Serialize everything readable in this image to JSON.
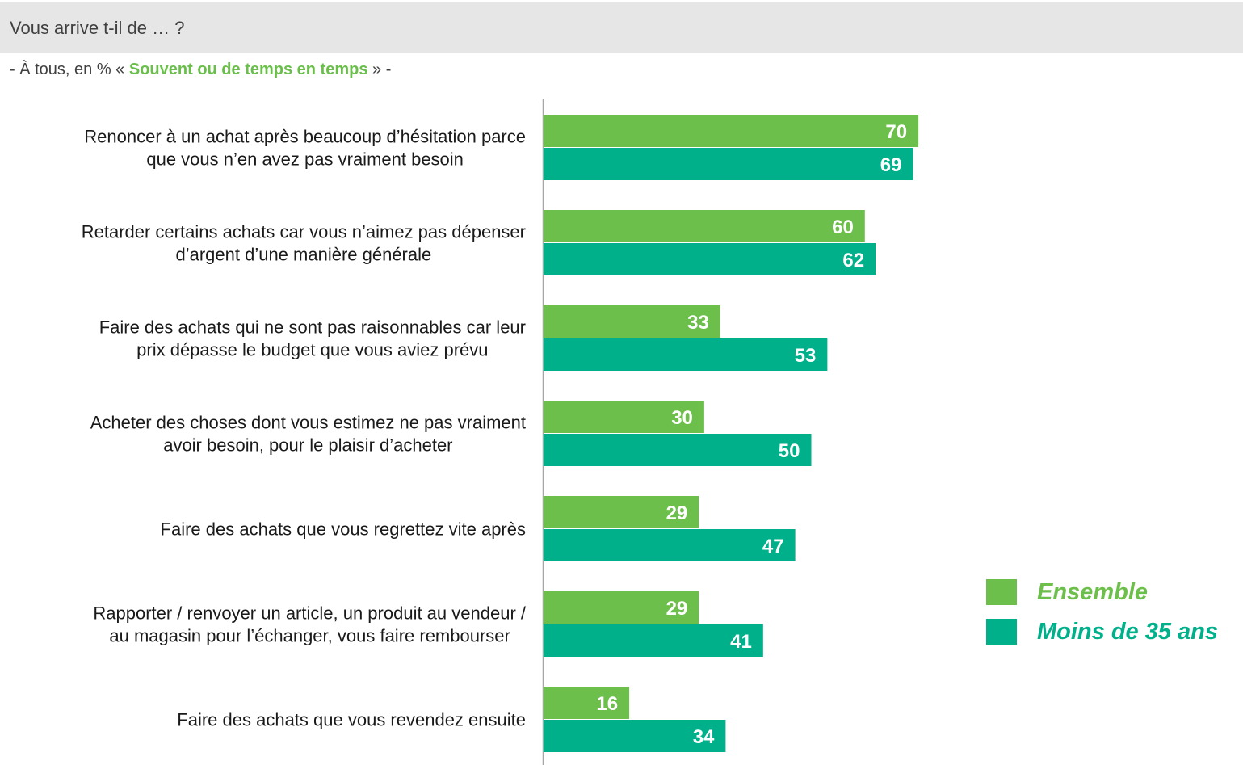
{
  "header": {
    "title": "Vous arrive t-il de … ?",
    "subtitle_prefix": "- À tous, en % « ",
    "subtitle_highlight": "Souvent ou de temps en temps",
    "subtitle_suffix": " » -"
  },
  "colors": {
    "ensemble": "#6dbf4b",
    "moins35": "#00b08a",
    "axis": "#a6a6a6",
    "label_text": "#1a1a1a"
  },
  "legend": {
    "ensemble": "Ensemble",
    "moins35": "Moins de 35 ans"
  },
  "chart_data": {
    "type": "bar",
    "orientation": "horizontal",
    "categories": [
      [
        "Renoncer à un achat après beaucoup d’hésitation parce",
        "que vous n’en avez pas vraiment besoin"
      ],
      [
        "Retarder certains achats car vous n’aimez pas dépenser",
        "d’argent d’une manière générale"
      ],
      [
        "Faire des achats qui ne sont pas raisonnables car leur",
        "prix dépasse le budget que vous aviez prévu"
      ],
      [
        "Acheter des choses dont vous estimez ne pas vraiment",
        "avoir besoin, pour le plaisir d’acheter"
      ],
      [
        "Faire des achats que vous regrettez vite après"
      ],
      [
        "Rapporter / renvoyer un article, un produit au vendeur /",
        "au magasin pour l’échanger, vous faire rembourser"
      ],
      [
        "Faire des achats que vous revendez ensuite"
      ]
    ],
    "series": [
      {
        "name": "Ensemble",
        "values": [
          70,
          60,
          33,
          30,
          29,
          29,
          16
        ]
      },
      {
        "name": "Moins de 35 ans",
        "values": [
          69,
          62,
          53,
          50,
          47,
          41,
          34
        ]
      }
    ],
    "xlim": [
      0,
      100
    ],
    "grid": false,
    "legend_position": "right"
  }
}
